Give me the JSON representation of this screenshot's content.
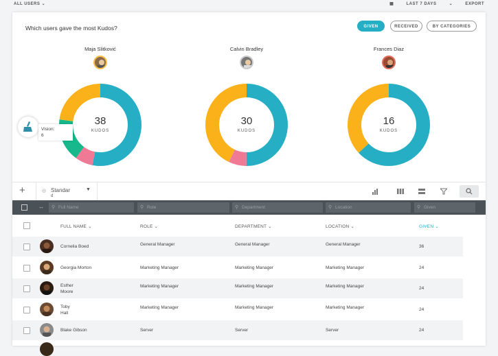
{
  "topbar": {
    "users_filter": "ALL USERS",
    "date_filter": "LAST 7 DAYS",
    "export": "EXPORT"
  },
  "panel": {
    "question": "Which users gave the most Kudos?",
    "segments": {
      "given": "GIVEN",
      "received": "RECEIVED",
      "by_categories": "BY CATEGORIES"
    }
  },
  "chart_data": [
    {
      "type": "pie",
      "title": "Maja Slitković",
      "center_value": "38",
      "center_label": "KUDOS",
      "slices": [
        {
          "color": "#26afc4",
          "share": 0.53
        },
        {
          "color": "#f07a95",
          "share": 0.07
        },
        {
          "color": "#16b88c",
          "share": 0.17
        },
        {
          "color": "#fbb21a",
          "share": 0.23
        }
      ]
    },
    {
      "type": "pie",
      "title": "Calvin Bradley",
      "center_value": "30",
      "center_label": "KUDOS",
      "slices": [
        {
          "color": "#26afc4",
          "share": 0.5
        },
        {
          "color": "#f07a95",
          "share": 0.07
        },
        {
          "color": "#fbb21a",
          "share": 0.43
        }
      ]
    },
    {
      "type": "pie",
      "title": "Frances Diaz",
      "center_value": "16",
      "center_label": "KUDOS",
      "slices": [
        {
          "color": "#26afc4",
          "share": 0.63
        },
        {
          "color": "#fbb21a",
          "share": 0.37
        }
      ]
    }
  ],
  "tooltip": {
    "label": "Vision:",
    "value": "6"
  },
  "toolbar": {
    "add": "+",
    "view_name": "Standar",
    "view_sub": "d"
  },
  "filters": {
    "full_name": "Full Name",
    "role": "Role",
    "department": "Department",
    "location": "Location",
    "given": "Given"
  },
  "columns": {
    "full_name": "FULL NAME",
    "role": "ROLE",
    "department": "DEPARTMENT",
    "location": "LOCATION",
    "given": "GIVEN"
  },
  "rows": [
    {
      "name": "Cornelia Boed",
      "name2": "",
      "role": "General Manager",
      "department": "General Manager",
      "location": "General Manager",
      "given": "36"
    },
    {
      "name": "Georgia Morton",
      "name2": "",
      "role": "Marketing Manager",
      "department": "Marketing Manager",
      "location": "Marketing Manager",
      "given": "24"
    },
    {
      "name": "Esther",
      "name2": "Moore",
      "role": "Marketing Manager",
      "department": "Marketing Manager",
      "location": "Marketing Manager",
      "given": "24"
    },
    {
      "name": "Toby",
      "name2": "Hall",
      "role": "Marketing Manager",
      "department": "Marketing Manager",
      "location": "Marketing Manager",
      "given": "24"
    },
    {
      "name": "Blake Gibson",
      "name2": "",
      "role": "Server",
      "department": "Server",
      "location": "Server",
      "given": "24"
    }
  ]
}
